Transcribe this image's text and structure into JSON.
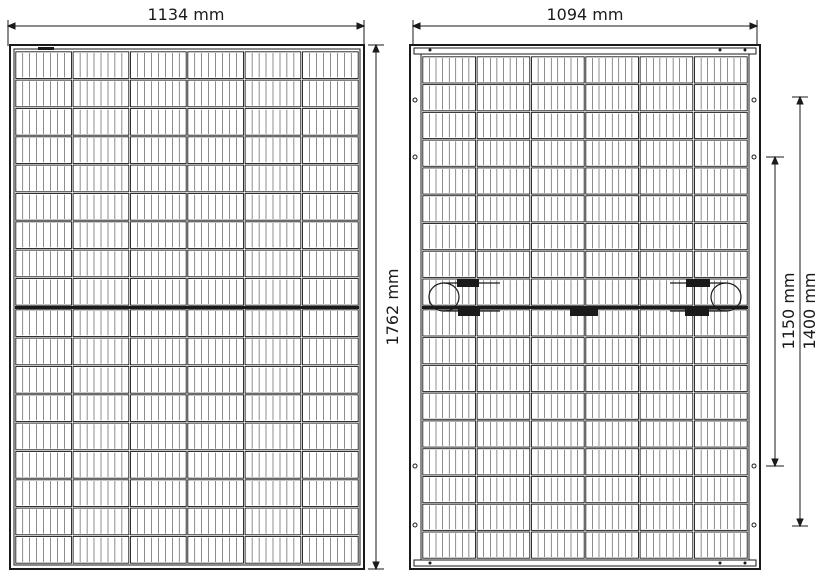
{
  "front_view": {
    "width_label": "1134 mm",
    "height_label": "1762 mm"
  },
  "rear_view": {
    "width_label": "1094 mm",
    "hole_spacing_inner_label": "1150 mm",
    "hole_spacing_outer_label": "1400 mm"
  }
}
